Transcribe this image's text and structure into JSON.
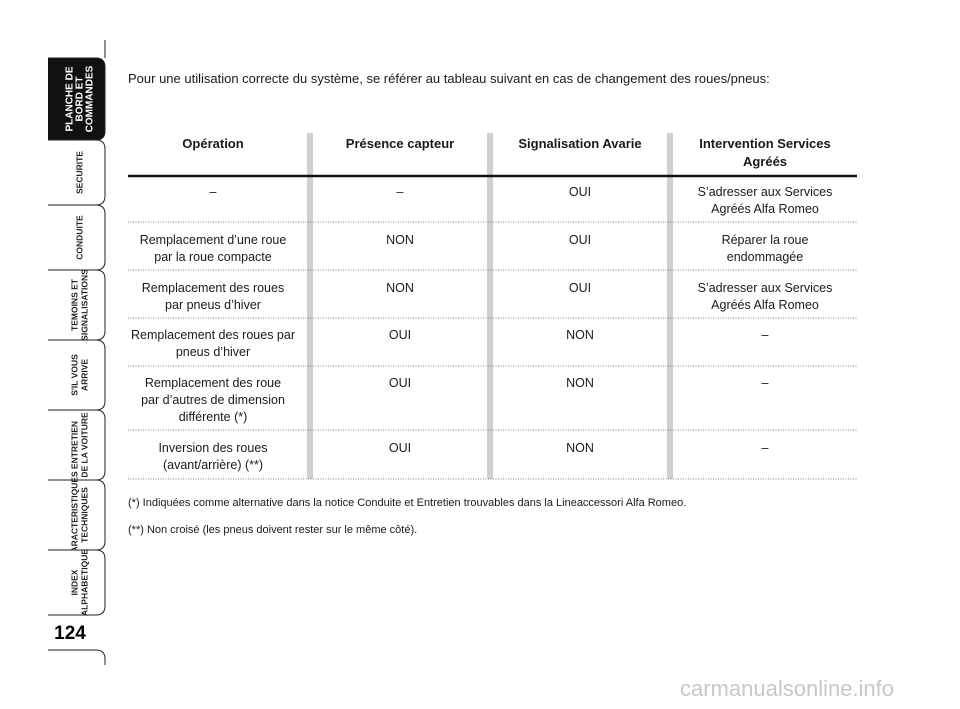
{
  "sidebar": {
    "tabs": [
      {
        "lines": [
          "PLANCHE DE",
          "BORD ET",
          "COMMANDES"
        ],
        "active": true
      },
      {
        "lines": [
          "SECURITE"
        ],
        "active": false
      },
      {
        "lines": [
          "CONDUITE"
        ],
        "active": false
      },
      {
        "lines": [
          "TEMOINS ET",
          "SIGNALISATIONS"
        ],
        "active": false
      },
      {
        "lines": [
          "S'IL VOUS",
          "ARRIVE"
        ],
        "active": false
      },
      {
        "lines": [
          "ENTRETIEN",
          "DE LA VOITURE"
        ],
        "active": false
      },
      {
        "lines": [
          "CARACTERISTIQUES",
          "TECHNIQUES"
        ],
        "active": false
      },
      {
        "lines": [
          "INDEX",
          "ALPHABETIQUE"
        ],
        "active": false
      }
    ],
    "page_number": "124"
  },
  "intro": "Pour une utilisation correcte du système, se référer au tableau suivant en cas de changement des roues/pneus:",
  "table": {
    "headers": [
      [
        "Opération"
      ],
      [
        "Présence capteur"
      ],
      [
        "Signalisation Avarie"
      ],
      [
        "Intervention Services",
        "Agréés"
      ]
    ],
    "rows": [
      [
        [
          "–"
        ],
        [
          "–"
        ],
        [
          "OUI"
        ],
        [
          "S’adresser aux Services",
          "Agréés Alfa Romeo"
        ]
      ],
      [
        [
          "Remplacement d’une roue",
          "par la roue compacte"
        ],
        [
          "NON"
        ],
        [
          "OUI"
        ],
        [
          "Réparer la roue",
          "endommagée"
        ]
      ],
      [
        [
          "Remplacement des roues",
          "par pneus d’hiver"
        ],
        [
          "NON"
        ],
        [
          "OUI"
        ],
        [
          "S’adresser aux Services",
          "Agréés Alfa Romeo"
        ]
      ],
      [
        [
          "Remplacement des roues par",
          "pneus d’hiver"
        ],
        [
          "OUI"
        ],
        [
          "NON"
        ],
        [
          "–"
        ]
      ],
      [
        [
          "Remplacement des roue",
          "par d’autres de dimension",
          "différente (*)"
        ],
        [
          "OUI"
        ],
        [
          "NON"
        ],
        [
          "–"
        ]
      ],
      [
        [
          "Inversion des roues",
          "(avant/arrière) (**)"
        ],
        [
          "OUI"
        ],
        [
          "NON"
        ],
        [
          "–"
        ]
      ]
    ]
  },
  "footnotes": [
    "(*) Indiquées comme alternative dans la notice Conduite et Entretien trouvables dans la Lineaccessori Alfa Romeo.",
    "(**) Non croisé (les pneus doivent rester sur le même côté)."
  ],
  "watermark": "carmanualsonline.info"
}
